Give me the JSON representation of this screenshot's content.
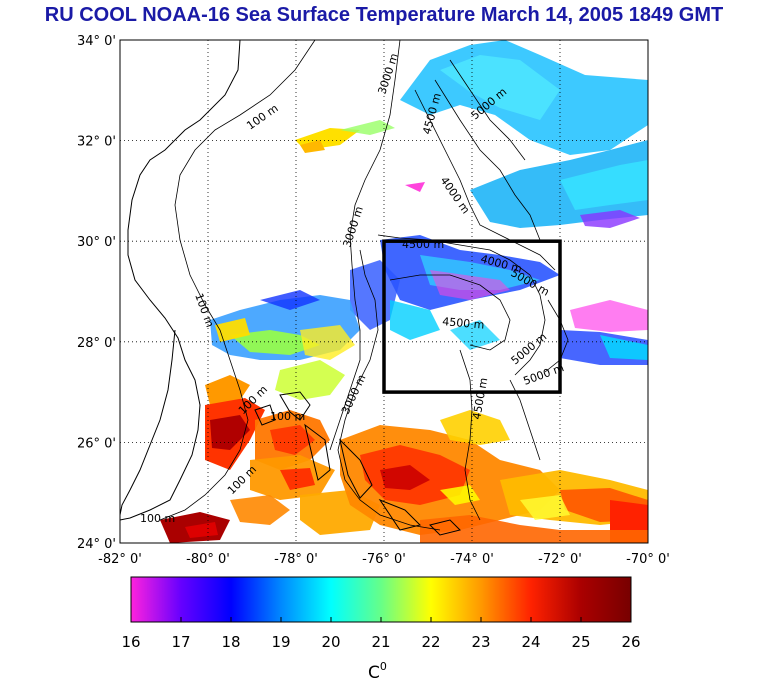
{
  "title": "RU COOL  NOAA-16 Sea Surface Temperature March 14, 2005 1849 GMT",
  "map": {
    "lon_range": [
      -82,
      -70
    ],
    "lat_range": [
      24,
      34
    ],
    "lat_ticks": [
      "34° 0'",
      "32° 0'",
      "30° 0'",
      "28° 0'",
      "26° 0'",
      "24° 0'"
    ],
    "lon_ticks": [
      "-82° 0'",
      "-80° 0'",
      "-78° 0'",
      "-76° 0'",
      "-74° 0'",
      "-72° 0'",
      "-70° 0'"
    ],
    "grid": "dotted",
    "study_box": {
      "lon": [
        -76,
        -72
      ],
      "lat": [
        27,
        30
      ]
    },
    "depth_labels": [
      "100 m",
      "100 m",
      "100 m",
      "100 m",
      "100 m",
      "100 m",
      "3000 m",
      "3000 m",
      "3000 m",
      "4000 m",
      "4000 m",
      "4500 m",
      "4500 m",
      "4500 m",
      "4500 m",
      "5000 m",
      "5000 m",
      "5000 m",
      "5000 m"
    ]
  },
  "colorbar": {
    "min": 16,
    "max": 26,
    "ticks": [
      "16",
      "17",
      "18",
      "19",
      "20",
      "21",
      "22",
      "23",
      "24",
      "25",
      "26"
    ],
    "unit": "C",
    "unit_sup": "0",
    "stops": [
      "#ff22dd",
      "#6600ff",
      "#0000ff",
      "#0088ff",
      "#00ffff",
      "#66ff88",
      "#ffff00",
      "#ff9900",
      "#ff2200",
      "#aa0000",
      "#770000"
    ]
  }
}
